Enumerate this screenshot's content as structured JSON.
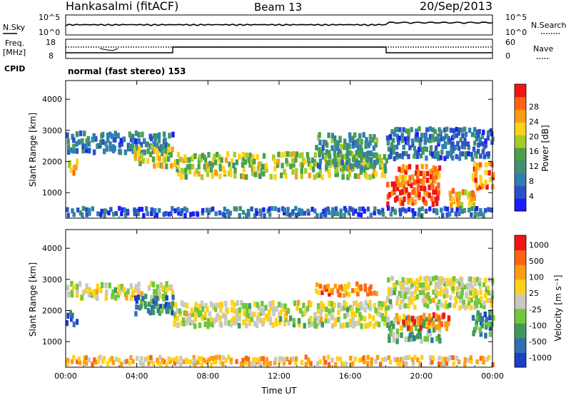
{
  "header": {
    "station": "Hankasalmi (fitACF)",
    "beam": "Beam 13",
    "date": "20/Sep/2013"
  },
  "top_panels": {
    "nsky": {
      "label": "N.Sky",
      "tick_top": "10^5",
      "tick_bottom": "10^0"
    },
    "nsearch": {
      "label": "N.Search",
      "tick_top": "10^5",
      "tick_bottom": "10^0"
    },
    "freq": {
      "label_line1": "Freq.",
      "label_line2": "[MHz]",
      "tick_top": "18",
      "tick_bottom": "8"
    },
    "nave": {
      "label": "Nave",
      "tick_top": "60",
      "tick_bottom": "0"
    },
    "cpid_label": "CPID",
    "cpid_value": "normal (fast stereo) 153"
  },
  "chart_data": [
    {
      "type": "heatmap",
      "panel": "power",
      "ylabel": "Slant Range [km]",
      "xlabel": "",
      "x_ticks": [
        "00:00",
        "04:00",
        "08:00",
        "12:00",
        "16:00",
        "20:00",
        "00:00"
      ],
      "y_ticks": [
        1000,
        2000,
        3000,
        4000
      ],
      "ylim": [
        180,
        4600
      ],
      "colorbar": {
        "title": "Power [dB]",
        "ticks": [
          "4",
          "8",
          "12",
          "16",
          "20",
          "24",
          "28"
        ],
        "colors": [
          "#1c1cff",
          "#2a52c8",
          "#2f7fb0",
          "#3f8f78",
          "#4aa24a",
          "#a6cc2a",
          "#ffd21a",
          "#ff9c12",
          "#ff6414",
          "#f21414"
        ]
      },
      "bands": [
        {
          "t0": 0.0,
          "t1": 6.0,
          "r0": 2200,
          "r1": 2850,
          "level": 0.25
        },
        {
          "t0": 0.0,
          "t1": 0.6,
          "r0": 1450,
          "r1": 1950,
          "level": 0.7
        },
        {
          "t0": 3.8,
          "t1": 6.0,
          "r0": 1750,
          "r1": 2400,
          "level": 0.6
        },
        {
          "t0": 6.0,
          "t1": 18.0,
          "r0": 1400,
          "r1": 2200,
          "level": 0.55
        },
        {
          "t0": 14.0,
          "t1": 17.5,
          "r0": 1700,
          "r1": 2800,
          "level": 0.35
        },
        {
          "t0": 18.0,
          "t1": 21.0,
          "r0": 500,
          "r1": 1300,
          "level": 0.9
        },
        {
          "t0": 18.5,
          "t1": 21.0,
          "r0": 1200,
          "r1": 1800,
          "level": 0.85
        },
        {
          "t0": 21.5,
          "t1": 23.0,
          "r0": 500,
          "r1": 1000,
          "level": 0.7
        },
        {
          "t0": 22.8,
          "t1": 24.0,
          "r0": 1000,
          "r1": 1900,
          "level": 0.8
        },
        {
          "t0": 18.0,
          "t1": 24.0,
          "r0": 2000,
          "r1": 3000,
          "level": 0.25
        },
        {
          "t0": 0.0,
          "t1": 24.0,
          "r0": 180,
          "r1": 450,
          "level": 0.2
        }
      ]
    },
    {
      "type": "heatmap",
      "panel": "velocity",
      "ylabel": "Slant Range [km]",
      "xlabel": "Time UT",
      "x_ticks": [
        "00:00",
        "04:00",
        "08:00",
        "12:00",
        "16:00",
        "20:00",
        "00:00"
      ],
      "y_ticks": [
        1000,
        2000,
        3000,
        4000
      ],
      "ylim": [
        180,
        4600
      ],
      "colorbar": {
        "title": "Velocity [m s⁻¹]",
        "ticks": [
          "1000",
          "500",
          "100",
          "25",
          "-25",
          "-100",
          "-500",
          "-1000"
        ],
        "colors": [
          "#1c3fc8",
          "#2f6fb4",
          "#3f9a5a",
          "#6ec83a",
          "#c8c8c0",
          "#ffd21a",
          "#ff9c12",
          "#ff6414",
          "#f21414"
        ]
      },
      "bands": [
        {
          "t0": 0.0,
          "t1": 6.0,
          "r0": 2300,
          "r1": 2800,
          "level": 0.5
        },
        {
          "t0": 0.0,
          "t1": 0.6,
          "r0": 1450,
          "r1": 1950,
          "level": 0.15
        },
        {
          "t0": 3.8,
          "t1": 6.0,
          "r0": 1800,
          "r1": 2400,
          "level": 0.22
        },
        {
          "t0": 6.0,
          "t1": 18.0,
          "r0": 1400,
          "r1": 2200,
          "level": 0.5
        },
        {
          "t0": 14.0,
          "t1": 17.5,
          "r0": 2400,
          "r1": 2800,
          "level": 0.75
        },
        {
          "t0": 18.0,
          "t1": 21.0,
          "r0": 900,
          "r1": 1700,
          "level": 0.35
        },
        {
          "t0": 18.5,
          "t1": 21.5,
          "r0": 1300,
          "r1": 1800,
          "level": 0.8
        },
        {
          "t0": 22.8,
          "t1": 24.0,
          "r0": 1100,
          "r1": 1900,
          "level": 0.25
        },
        {
          "t0": 18.0,
          "t1": 24.0,
          "r0": 2000,
          "r1": 3000,
          "level": 0.5
        },
        {
          "t0": 0.0,
          "t1": 24.0,
          "r0": 180,
          "r1": 450,
          "level": 0.65
        }
      ]
    }
  ]
}
